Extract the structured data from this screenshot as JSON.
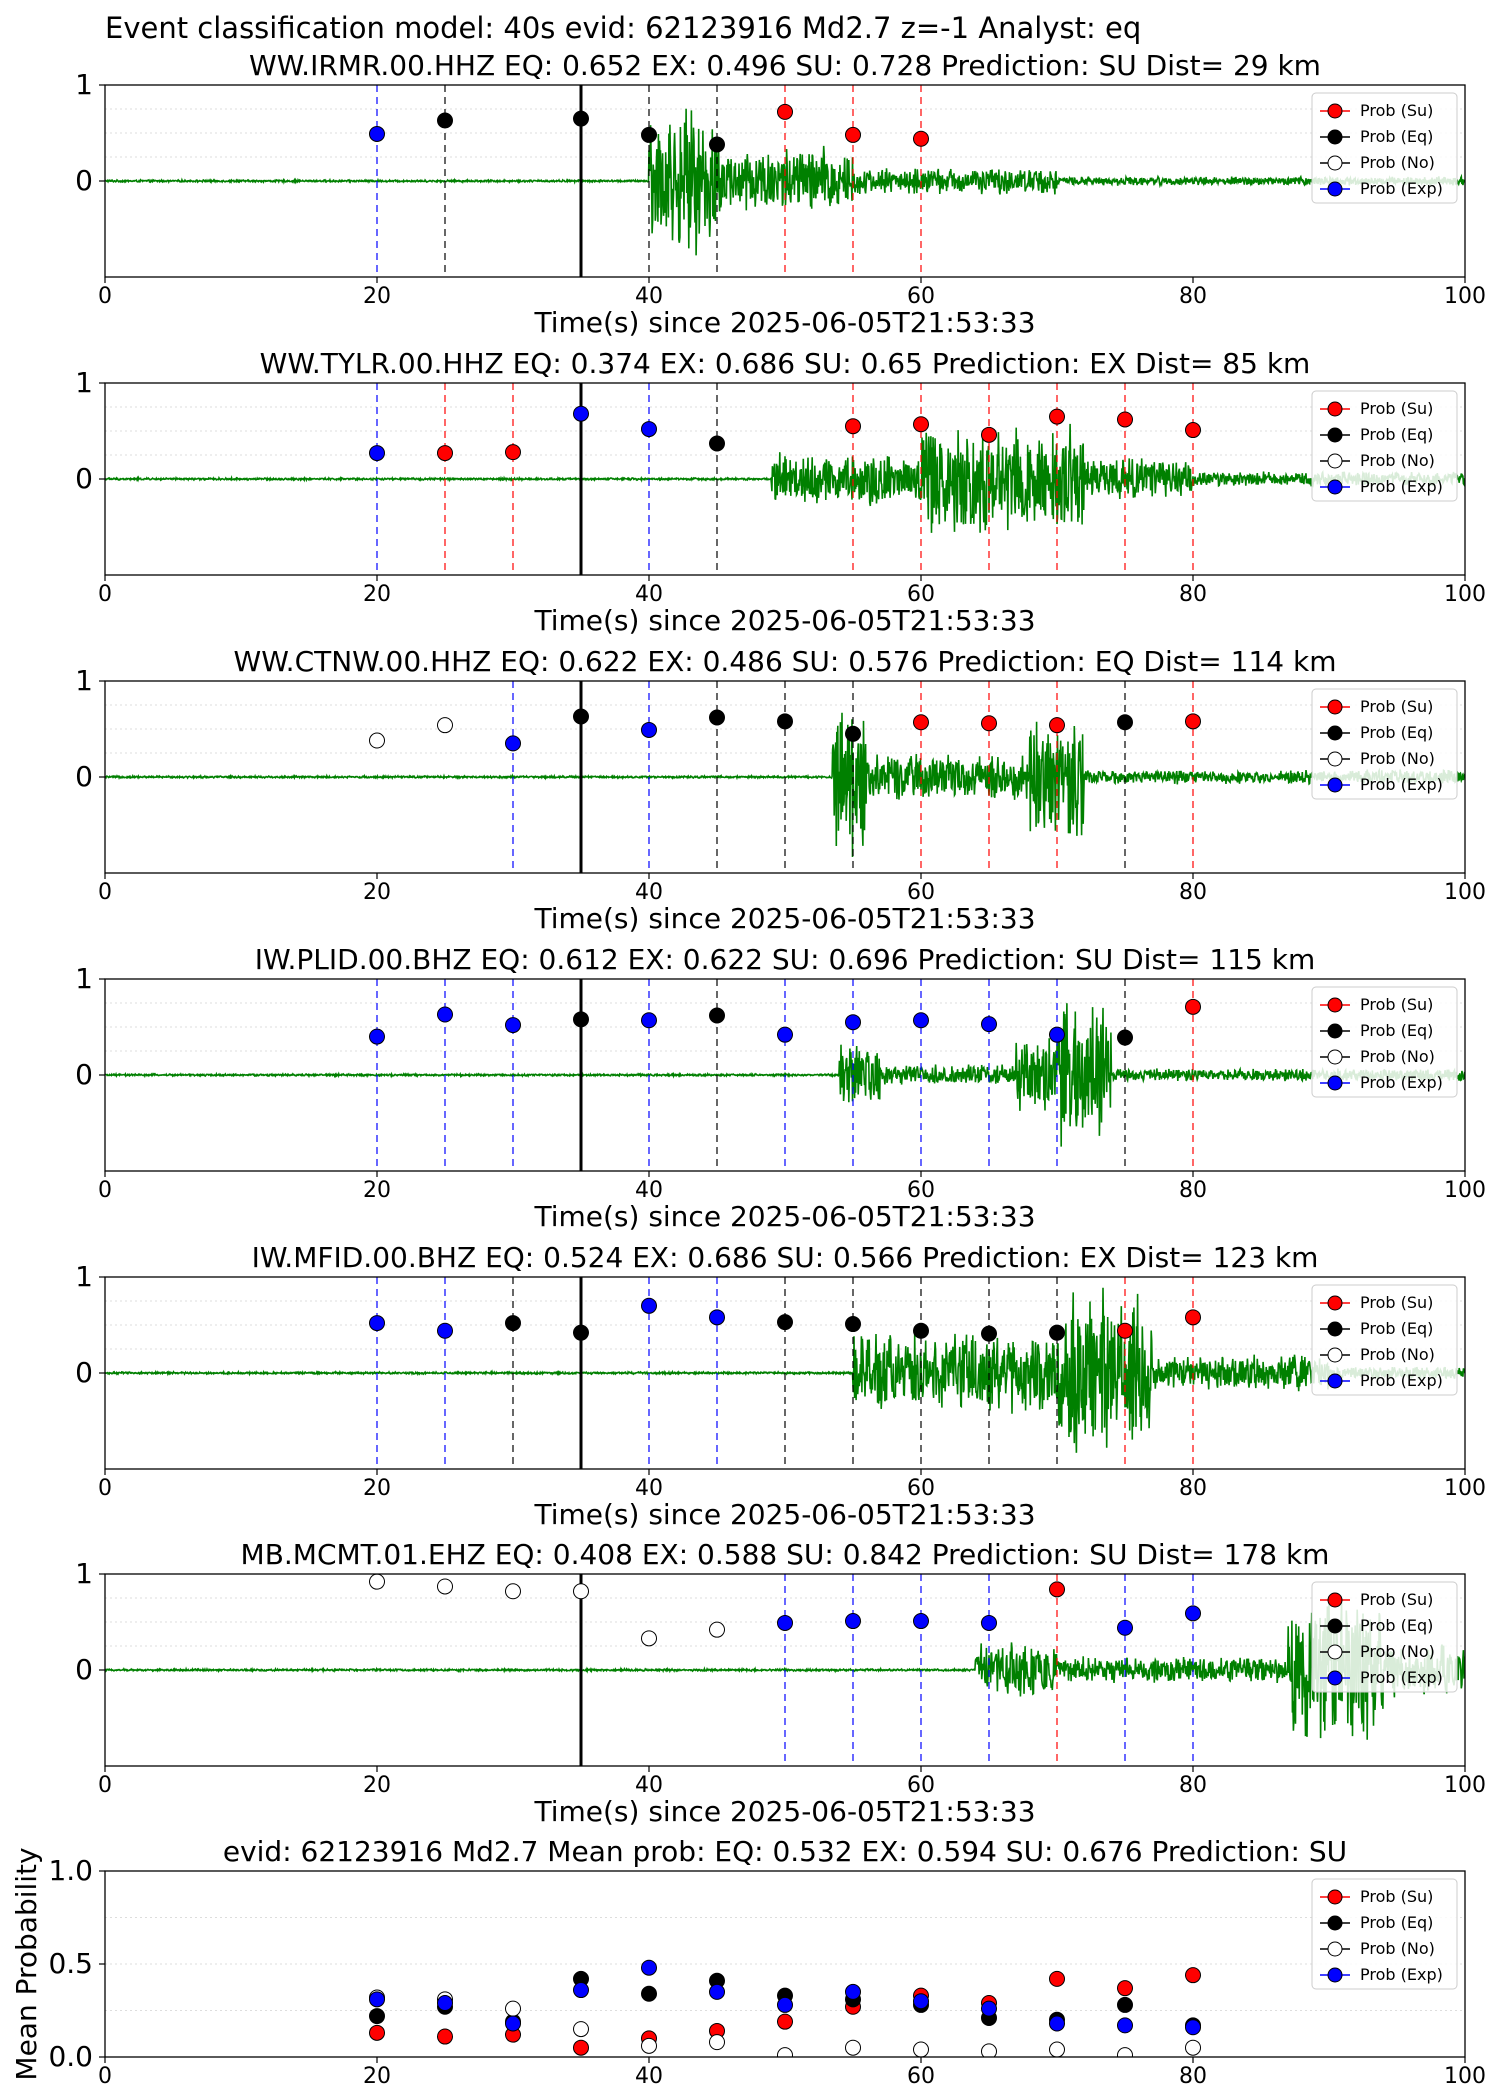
{
  "figure_title": "Event classification model: 40s evid: 62123916 Md2.7 z=-1 Analyst: eq",
  "xlabel": "Time(s) since 2025-06-05T21:53:33",
  "legend": [
    {
      "key": "su",
      "label": "Prob (Su)",
      "color": "#ff0000"
    },
    {
      "key": "eq",
      "label": "Prob (Eq)",
      "color": "#000000"
    },
    {
      "key": "no",
      "label": "Prob (No)",
      "color": "#ffffff"
    },
    {
      "key": "ex",
      "label": "Prob (Exp)",
      "color": "#0000ff"
    }
  ],
  "colors": {
    "waveform": "#008000",
    "su": "#ff0000",
    "eq": "#000000",
    "no": "#ffffff",
    "ex": "#0000ff"
  },
  "chart_data": [
    {
      "type": "scatter",
      "title": "WW.IRMR.00.HHZ   EQ: 0.652  EX: 0.496  SU: 0.728   Prediction: SU    Dist= 29 km",
      "xlim": [
        0,
        100
      ],
      "ylim": [
        -1,
        1
      ],
      "xticks": [
        0,
        20,
        40,
        60,
        80,
        100
      ],
      "yticks": [
        0,
        1
      ],
      "xlabel": "Time(s) since 2025-06-05T21:53:33",
      "origin_time": 35,
      "waveform_segments": [
        {
          "start": 40,
          "end": 45,
          "amp": 0.8
        },
        {
          "start": 45,
          "end": 55,
          "amp": 0.4
        },
        {
          "start": 55,
          "end": 70,
          "amp": 0.15
        },
        {
          "start": 70,
          "end": 100,
          "amp": 0.05
        }
      ],
      "points": [
        {
          "x": 20,
          "y": 0.49,
          "cls": "ex"
        },
        {
          "x": 25,
          "y": 0.63,
          "cls": "eq"
        },
        {
          "x": 35,
          "y": 0.65,
          "cls": "eq"
        },
        {
          "x": 40,
          "y": 0.48,
          "cls": "eq"
        },
        {
          "x": 45,
          "y": 0.38,
          "cls": "eq"
        },
        {
          "x": 50,
          "y": 0.72,
          "cls": "su"
        },
        {
          "x": 55,
          "y": 0.48,
          "cls": "su"
        },
        {
          "x": 60,
          "y": 0.44,
          "cls": "su"
        }
      ]
    },
    {
      "type": "scatter",
      "title": "WW.TYLR.00.HHZ   EQ: 0.374  EX: 0.686  SU: 0.65   Prediction: EX    Dist= 85 km",
      "xlim": [
        0,
        100
      ],
      "ylim": [
        -1,
        1
      ],
      "xticks": [
        0,
        20,
        40,
        60,
        80,
        100
      ],
      "yticks": [
        0,
        1
      ],
      "xlabel": "Time(s) since 2025-06-05T21:53:33",
      "origin_time": 35,
      "waveform_segments": [
        {
          "start": 49,
          "end": 60,
          "amp": 0.3
        },
        {
          "start": 60,
          "end": 72,
          "amp": 0.65
        },
        {
          "start": 72,
          "end": 80,
          "amp": 0.25
        },
        {
          "start": 80,
          "end": 100,
          "amp": 0.08
        }
      ],
      "points": [
        {
          "x": 20,
          "y": 0.27,
          "cls": "ex"
        },
        {
          "x": 25,
          "y": 0.27,
          "cls": "su"
        },
        {
          "x": 30,
          "y": 0.28,
          "cls": "su"
        },
        {
          "x": 35,
          "y": 0.68,
          "cls": "ex"
        },
        {
          "x": 40,
          "y": 0.52,
          "cls": "ex"
        },
        {
          "x": 45,
          "y": 0.37,
          "cls": "eq"
        },
        {
          "x": 55,
          "y": 0.55,
          "cls": "su"
        },
        {
          "x": 60,
          "y": 0.57,
          "cls": "su"
        },
        {
          "x": 65,
          "y": 0.46,
          "cls": "su"
        },
        {
          "x": 70,
          "y": 0.65,
          "cls": "su"
        },
        {
          "x": 75,
          "y": 0.62,
          "cls": "su"
        },
        {
          "x": 80,
          "y": 0.51,
          "cls": "su"
        }
      ]
    },
    {
      "type": "scatter",
      "title": "WW.CTNW.00.HHZ   EQ: 0.622  EX: 0.486  SU: 0.576   Prediction: EQ    Dist= 114 km",
      "xlim": [
        0,
        100
      ],
      "ylim": [
        -1,
        1
      ],
      "xticks": [
        0,
        20,
        40,
        60,
        80,
        100
      ],
      "yticks": [
        0,
        1
      ],
      "xlabel": "Time(s) since 2025-06-05T21:53:33",
      "origin_time": 35,
      "waveform_segments": [
        {
          "start": 53.5,
          "end": 56,
          "amp": 0.9
        },
        {
          "start": 56,
          "end": 68,
          "amp": 0.25
        },
        {
          "start": 68,
          "end": 72,
          "amp": 0.7
        },
        {
          "start": 72,
          "end": 100,
          "amp": 0.08
        }
      ],
      "points": [
        {
          "x": 20,
          "y": 0.38,
          "cls": "no"
        },
        {
          "x": 25,
          "y": 0.54,
          "cls": "no"
        },
        {
          "x": 30,
          "y": 0.35,
          "cls": "ex"
        },
        {
          "x": 35,
          "y": 0.63,
          "cls": "eq"
        },
        {
          "x": 40,
          "y": 0.49,
          "cls": "ex"
        },
        {
          "x": 45,
          "y": 0.62,
          "cls": "eq"
        },
        {
          "x": 50,
          "y": 0.58,
          "cls": "eq"
        },
        {
          "x": 55,
          "y": 0.45,
          "cls": "eq"
        },
        {
          "x": 60,
          "y": 0.57,
          "cls": "su"
        },
        {
          "x": 65,
          "y": 0.56,
          "cls": "su"
        },
        {
          "x": 70,
          "y": 0.54,
          "cls": "su"
        },
        {
          "x": 75,
          "y": 0.57,
          "cls": "eq"
        },
        {
          "x": 80,
          "y": 0.58,
          "cls": "su"
        }
      ]
    },
    {
      "type": "scatter",
      "title": "IW.PLID.00.BHZ   EQ: 0.612  EX: 0.622  SU: 0.696   Prediction: SU    Dist= 115 km",
      "xlim": [
        0,
        100
      ],
      "ylim": [
        -1,
        1
      ],
      "xticks": [
        0,
        20,
        40,
        60,
        80,
        100
      ],
      "yticks": [
        0,
        1
      ],
      "xlabel": "Time(s) since 2025-06-05T21:53:33",
      "origin_time": 35,
      "waveform_segments": [
        {
          "start": 54,
          "end": 57,
          "amp": 0.35
        },
        {
          "start": 57,
          "end": 67,
          "amp": 0.12
        },
        {
          "start": 67,
          "end": 70,
          "amp": 0.45
        },
        {
          "start": 70,
          "end": 74,
          "amp": 0.85
        },
        {
          "start": 74,
          "end": 100,
          "amp": 0.07
        }
      ],
      "points": [
        {
          "x": 20,
          "y": 0.4,
          "cls": "ex"
        },
        {
          "x": 25,
          "y": 0.63,
          "cls": "ex"
        },
        {
          "x": 30,
          "y": 0.52,
          "cls": "ex"
        },
        {
          "x": 35,
          "y": 0.58,
          "cls": "eq"
        },
        {
          "x": 40,
          "y": 0.57,
          "cls": "ex"
        },
        {
          "x": 45,
          "y": 0.62,
          "cls": "eq"
        },
        {
          "x": 50,
          "y": 0.42,
          "cls": "ex"
        },
        {
          "x": 55,
          "y": 0.55,
          "cls": "ex"
        },
        {
          "x": 60,
          "y": 0.57,
          "cls": "ex"
        },
        {
          "x": 65,
          "y": 0.53,
          "cls": "ex"
        },
        {
          "x": 70,
          "y": 0.42,
          "cls": "ex"
        },
        {
          "x": 75,
          "y": 0.39,
          "cls": "eq"
        },
        {
          "x": 80,
          "y": 0.71,
          "cls": "su"
        }
      ]
    },
    {
      "type": "scatter",
      "title": "IW.MFID.00.BHZ   EQ: 0.524  EX: 0.686  SU: 0.566   Prediction: EX    Dist= 123 km",
      "xlim": [
        0,
        100
      ],
      "ylim": [
        -1,
        1
      ],
      "xticks": [
        0,
        20,
        40,
        60,
        80,
        100
      ],
      "yticks": [
        0,
        1
      ],
      "xlabel": "Time(s) since 2025-06-05T21:53:33",
      "origin_time": 35,
      "waveform_segments": [
        {
          "start": 55,
          "end": 70,
          "amp": 0.45
        },
        {
          "start": 70,
          "end": 77,
          "amp": 0.9
        },
        {
          "start": 77,
          "end": 90,
          "amp": 0.2
        },
        {
          "start": 90,
          "end": 100,
          "amp": 0.07
        }
      ],
      "points": [
        {
          "x": 20,
          "y": 0.52,
          "cls": "ex"
        },
        {
          "x": 25,
          "y": 0.44,
          "cls": "ex"
        },
        {
          "x": 30,
          "y": 0.52,
          "cls": "eq"
        },
        {
          "x": 35,
          "y": 0.42,
          "cls": "eq"
        },
        {
          "x": 40,
          "y": 0.7,
          "cls": "ex"
        },
        {
          "x": 45,
          "y": 0.58,
          "cls": "ex"
        },
        {
          "x": 50,
          "y": 0.53,
          "cls": "eq"
        },
        {
          "x": 55,
          "y": 0.51,
          "cls": "eq"
        },
        {
          "x": 60,
          "y": 0.44,
          "cls": "eq"
        },
        {
          "x": 65,
          "y": 0.41,
          "cls": "eq"
        },
        {
          "x": 70,
          "y": 0.42,
          "cls": "eq"
        },
        {
          "x": 75,
          "y": 0.44,
          "cls": "su"
        },
        {
          "x": 80,
          "y": 0.58,
          "cls": "su"
        }
      ]
    },
    {
      "type": "scatter",
      "title": "MB.MCMT.01.EHZ   EQ: 0.408  EX: 0.588  SU: 0.842   Prediction: SU    Dist= 178 km",
      "xlim": [
        0,
        100
      ],
      "ylim": [
        -1,
        1
      ],
      "xticks": [
        0,
        20,
        40,
        60,
        80,
        100
      ],
      "yticks": [
        0,
        1
      ],
      "xlabel": "Time(s) since 2025-06-05T21:53:33",
      "origin_time": 35,
      "waveform_segments": [
        {
          "start": 64,
          "end": 70,
          "amp": 0.3
        },
        {
          "start": 70,
          "end": 87,
          "amp": 0.15
        },
        {
          "start": 87,
          "end": 94,
          "amp": 0.85
        },
        {
          "start": 94,
          "end": 100,
          "amp": 0.3
        }
      ],
      "points": [
        {
          "x": 20,
          "y": 0.92,
          "cls": "no"
        },
        {
          "x": 25,
          "y": 0.87,
          "cls": "no"
        },
        {
          "x": 30,
          "y": 0.82,
          "cls": "no"
        },
        {
          "x": 35,
          "y": 0.82,
          "cls": "no"
        },
        {
          "x": 40,
          "y": 0.33,
          "cls": "no"
        },
        {
          "x": 45,
          "y": 0.42,
          "cls": "no"
        },
        {
          "x": 50,
          "y": 0.49,
          "cls": "ex"
        },
        {
          "x": 55,
          "y": 0.51,
          "cls": "ex"
        },
        {
          "x": 60,
          "y": 0.51,
          "cls": "ex"
        },
        {
          "x": 65,
          "y": 0.49,
          "cls": "ex"
        },
        {
          "x": 70,
          "y": 0.84,
          "cls": "su"
        },
        {
          "x": 75,
          "y": 0.44,
          "cls": "ex"
        },
        {
          "x": 80,
          "y": 0.59,
          "cls": "ex"
        }
      ]
    },
    {
      "type": "scatter",
      "title": "evid: 62123916  Md2.7   Mean prob:   EQ: 0.532  EX: 0.594  SU: 0.676   Prediction: SU",
      "xlim": [
        0,
        100
      ],
      "ylim": [
        0,
        1
      ],
      "xticks": [
        0,
        20,
        40,
        60,
        80,
        100
      ],
      "yticks": [
        0.0,
        0.5,
        1.0
      ],
      "ytick_labels": [
        "0.0",
        "0.5",
        "1.0"
      ],
      "ylabel": "Mean Probability",
      "series": [
        {
          "name": "Prob (Su)",
          "cls": "su",
          "x": [
            20,
            25,
            30,
            35,
            40,
            45,
            50,
            55,
            60,
            65,
            70,
            75,
            80
          ],
          "y": [
            0.13,
            0.11,
            0.12,
            0.05,
            0.1,
            0.14,
            0.19,
            0.27,
            0.33,
            0.29,
            0.42,
            0.37,
            0.44
          ]
        },
        {
          "name": "Prob (Eq)",
          "cls": "eq",
          "x": [
            20,
            25,
            30,
            35,
            40,
            45,
            50,
            55,
            60,
            65,
            70,
            75,
            80
          ],
          "y": [
            0.22,
            0.27,
            0.19,
            0.42,
            0.34,
            0.41,
            0.33,
            0.31,
            0.28,
            0.21,
            0.2,
            0.28,
            0.17
          ]
        },
        {
          "name": "Prob (No)",
          "cls": "no",
          "x": [
            20,
            25,
            30,
            35,
            40,
            45,
            50,
            55,
            60,
            65,
            70,
            75,
            80
          ],
          "y": [
            0.32,
            0.31,
            0.26,
            0.15,
            0.06,
            0.08,
            0.01,
            0.05,
            0.04,
            0.03,
            0.04,
            0.01,
            0.05
          ]
        },
        {
          "name": "Prob (Exp)",
          "cls": "ex",
          "x": [
            20,
            25,
            30,
            35,
            40,
            45,
            50,
            55,
            60,
            65,
            70,
            75,
            80
          ],
          "y": [
            0.31,
            0.29,
            0.18,
            0.36,
            0.48,
            0.35,
            0.28,
            0.35,
            0.3,
            0.26,
            0.18,
            0.17,
            0.16
          ]
        }
      ]
    }
  ]
}
